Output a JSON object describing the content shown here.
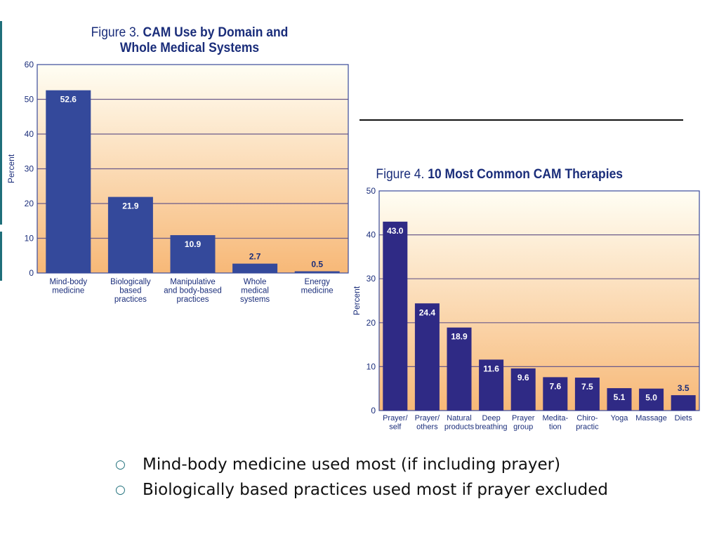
{
  "slide": {
    "bullets": [
      {
        "marker": "○",
        "text": "Mind-body medicine used most (if including prayer)"
      },
      {
        "marker": "○",
        "text": "Biologically based practices used most if prayer excluded"
      }
    ]
  },
  "chart_data": [
    {
      "id": "fig3",
      "type": "bar",
      "title_prefix": "Figure 3.",
      "title": "CAM Use by Domain and Whole Medical Systems",
      "title_lines": [
        "CAM Use by Domain and",
        "Whole Medical Systems"
      ],
      "xlabel": "",
      "ylabel": "Percent",
      "ylim": [
        0,
        60
      ],
      "yticks": [
        0,
        10,
        20,
        30,
        40,
        50,
        60
      ],
      "grid": true,
      "categories": [
        [
          "Mind-body",
          "medicine"
        ],
        [
          "Biologically",
          "based",
          "practices"
        ],
        [
          "Manipulative",
          "and body-based",
          "practices"
        ],
        [
          "Whole",
          "medical",
          "systems"
        ],
        [
          "Energy",
          "medicine"
        ]
      ],
      "values": [
        52.6,
        21.9,
        10.9,
        2.7,
        0.5
      ],
      "value_labels": [
        "52.6",
        "21.9",
        "10.9",
        "2.7",
        "0.5"
      ],
      "colors": {
        "bar": "#34499b",
        "bg_top": "#fffef4",
        "bg_bottom": "#f7b877",
        "grid": "#6a5a8a",
        "frame": "#3a4a9a",
        "text": "#1a2d7a"
      }
    },
    {
      "id": "fig4",
      "type": "bar",
      "title_prefix": "Figure 4.",
      "title": "10 Most Common CAM Therapies",
      "title_lines": [
        "10 Most Common CAM Therapies"
      ],
      "xlabel": "",
      "ylabel": "Percent",
      "ylim": [
        0,
        50
      ],
      "yticks": [
        0,
        10,
        20,
        30,
        40,
        50
      ],
      "grid": true,
      "categories": [
        [
          "Prayer/",
          "self"
        ],
        [
          "Prayer/",
          "others"
        ],
        [
          "Natural",
          "products"
        ],
        [
          "Deep",
          "breathing"
        ],
        [
          "Prayer",
          "group"
        ],
        [
          "Medita-",
          "tion"
        ],
        [
          "Chiro-",
          "practic"
        ],
        [
          "Yoga"
        ],
        [
          "Massage"
        ],
        [
          "Diets"
        ]
      ],
      "values": [
        43.0,
        24.4,
        18.9,
        11.6,
        9.6,
        7.6,
        7.5,
        5.1,
        5.0,
        3.5
      ],
      "value_labels": [
        "43.0",
        "24.4",
        "18.9",
        "11.6",
        "9.6",
        "7.6",
        "7.5",
        "5.1",
        "5.0",
        "3.5"
      ],
      "colors": {
        "bar": "#2f2a85",
        "bg_top": "#fffef4",
        "bg_bottom": "#f7b877",
        "grid": "#6a5a8a",
        "frame": "#3a4a9a",
        "text": "#1a2d7a"
      }
    }
  ]
}
